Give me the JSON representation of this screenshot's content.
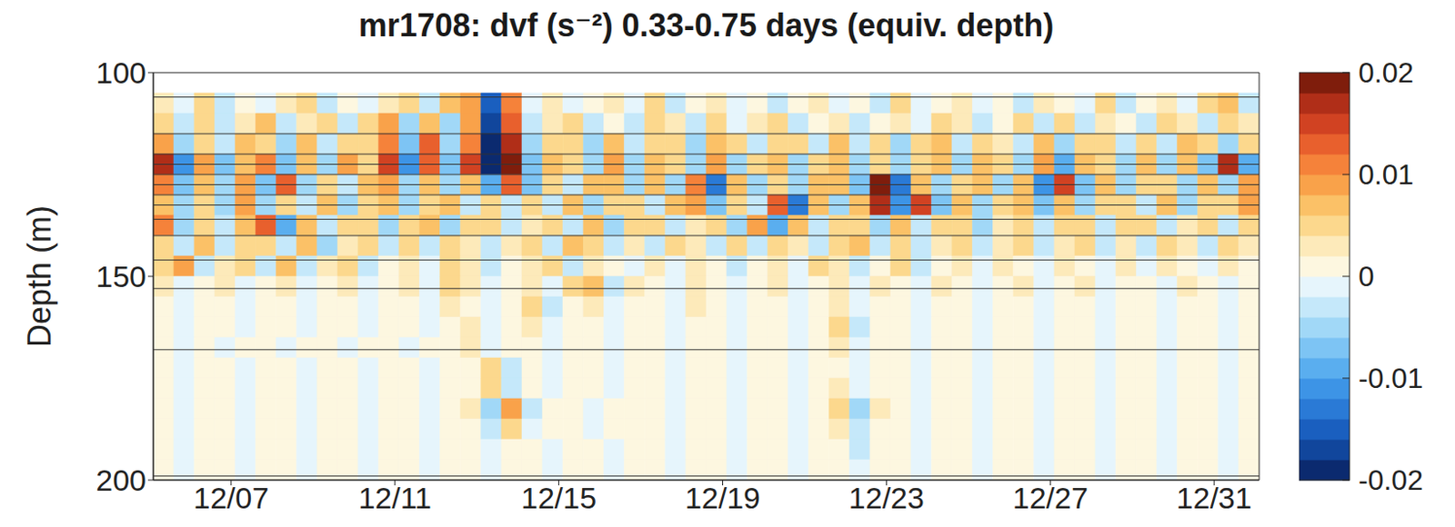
{
  "chart_data": {
    "type": "heatmap",
    "title": "mr1708: dvf (s⁻²) 0.33-0.75 days (equiv. depth)",
    "ylabel": "Depth (m)",
    "x": [
      5.35,
      5.85,
      6.35,
      6.85,
      7.35,
      7.85,
      8.35,
      8.85,
      9.35,
      9.85,
      10.35,
      10.85,
      11.35,
      11.85,
      12.35,
      12.85,
      13.35,
      13.85,
      14.35,
      14.85,
      15.35,
      15.85,
      16.35,
      16.85,
      17.35,
      17.85,
      18.35,
      18.85,
      19.35,
      19.85,
      20.35,
      20.85,
      21.35,
      21.85,
      22.35,
      22.85,
      23.35,
      23.85,
      24.35,
      24.85,
      25.35,
      25.85,
      26.35,
      26.85,
      27.35,
      27.85,
      28.35,
      28.85,
      29.35,
      29.85,
      30.35,
      30.85,
      31.35,
      31.85
    ],
    "y": [
      107.5,
      112.5,
      117.5,
      122.5,
      127.5,
      132.5,
      137.5,
      142.5,
      147.5,
      152.5,
      157.5,
      162.5,
      167.5,
      172.5,
      177.5,
      182.5,
      187.5,
      192.5,
      197.5
    ],
    "z": [
      [
        0.003,
        -0.002,
        0.004,
        -0.003,
        0.002,
        -0.002,
        0.003,
        0.004,
        -0.003,
        0.002,
        -0.002,
        0.003,
        0.005,
        -0.004,
        0.006,
        0.008,
        -0.016,
        0.01,
        -0.002,
        0.003,
        -0.002,
        0.002,
        0.003,
        -0.002,
        0.004,
        -0.003,
        0.002,
        0.003,
        -0.002,
        0.002,
        -0.003,
        0.002,
        0.003,
        -0.002,
        0.002,
        -0.003,
        0.004,
        -0.002,
        0.002,
        0.003,
        -0.002,
        0.002,
        -0.003,
        0.003,
        0.002,
        -0.002,
        0.004,
        -0.003,
        0.002,
        0.003,
        -0.002,
        0.004,
        0.006,
        -0.003
      ],
      [
        0.004,
        -0.003,
        0.005,
        -0.004,
        0.003,
        0.006,
        -0.004,
        0.003,
        0.005,
        -0.003,
        0.004,
        0.008,
        -0.006,
        0.007,
        -0.005,
        0.009,
        -0.018,
        0.012,
        -0.004,
        0.003,
        0.005,
        -0.003,
        0.002,
        -0.004,
        0.004,
        0.003,
        -0.003,
        0.005,
        -0.002,
        0.003,
        0.004,
        -0.003,
        0.002,
        0.003,
        -0.004,
        0.002,
        0.003,
        -0.002,
        0.004,
        0.003,
        -0.003,
        0.002,
        0.004,
        -0.003,
        0.005,
        -0.004,
        0.003,
        0.002,
        -0.003,
        0.004,
        0.003,
        -0.004,
        0.005,
        0.003
      ],
      [
        0.008,
        -0.006,
        0.005,
        -0.004,
        0.006,
        0.004,
        -0.005,
        0.006,
        -0.003,
        0.005,
        0.004,
        0.011,
        -0.008,
        0.012,
        -0.006,
        0.01,
        -0.02,
        0.016,
        -0.006,
        0.005,
        0.004,
        -0.005,
        0.006,
        -0.004,
        0.005,
        0.004,
        -0.005,
        0.006,
        0.004,
        -0.003,
        0.005,
        0.004,
        -0.004,
        0.006,
        -0.003,
        0.004,
        -0.005,
        0.004,
        0.006,
        -0.004,
        0.005,
        0.003,
        -0.004,
        0.006,
        -0.005,
        0.004,
        0.005,
        -0.004,
        0.005,
        -0.004,
        0.006,
        0.004,
        -0.005,
        0.004
      ],
      [
        0.016,
        -0.012,
        0.009,
        -0.007,
        0.006,
        0.01,
        -0.008,
        0.007,
        -0.006,
        0.008,
        0.005,
        0.014,
        -0.012,
        0.013,
        -0.008,
        0.015,
        -0.02,
        0.018,
        -0.008,
        0.006,
        0.005,
        -0.006,
        0.008,
        -0.005,
        0.006,
        0.005,
        -0.006,
        0.008,
        -0.005,
        0.004,
        0.006,
        -0.005,
        0.005,
        0.007,
        -0.006,
        0.005,
        -0.006,
        0.005,
        0.007,
        -0.005,
        0.006,
        0.004,
        -0.005,
        0.009,
        -0.01,
        0.006,
        0.005,
        -0.005,
        0.006,
        -0.005,
        0.007,
        -0.008,
        0.016,
        -0.01
      ],
      [
        0.01,
        -0.008,
        0.006,
        -0.005,
        0.009,
        -0.007,
        0.012,
        -0.006,
        0.005,
        -0.004,
        0.006,
        0.008,
        -0.006,
        0.007,
        -0.005,
        0.006,
        -0.01,
        0.012,
        -0.007,
        0.005,
        -0.004,
        0.006,
        0.007,
        -0.005,
        0.006,
        -0.005,
        0.011,
        -0.013,
        0.006,
        -0.005,
        0.005,
        -0.006,
        0.007,
        0.006,
        -0.008,
        0.018,
        -0.014,
        0.007,
        -0.006,
        0.005,
        0.006,
        -0.005,
        0.006,
        -0.012,
        0.014,
        -0.008,
        0.006,
        -0.005,
        0.004,
        0.005,
        -0.006,
        0.007,
        -0.005,
        0.009
      ],
      [
        0.006,
        -0.005,
        0.004,
        -0.006,
        0.008,
        -0.005,
        0.005,
        -0.004,
        0.006,
        -0.005,
        0.004,
        0.006,
        -0.005,
        0.004,
        0.006,
        -0.004,
        0.005,
        -0.004,
        0.005,
        -0.004,
        0.006,
        -0.005,
        0.004,
        0.005,
        -0.004,
        0.006,
        0.008,
        -0.007,
        0.005,
        -0.004,
        0.012,
        -0.014,
        0.006,
        -0.005,
        0.007,
        0.016,
        -0.012,
        0.014,
        -0.008,
        0.006,
        -0.005,
        0.005,
        0.006,
        -0.008,
        0.007,
        -0.005,
        0.004,
        0.005,
        -0.004,
        0.006,
        -0.005,
        0.004,
        0.005,
        0.008
      ],
      [
        0.01,
        -0.006,
        0.005,
        -0.004,
        0.006,
        0.012,
        -0.01,
        0.006,
        -0.004,
        0.005,
        0.004,
        -0.005,
        0.004,
        0.006,
        -0.005,
        0.004,
        0.005,
        -0.004,
        0.003,
        0.005,
        -0.004,
        0.006,
        -0.005,
        0.004,
        0.005,
        -0.004,
        0.003,
        0.005,
        -0.006,
        0.008,
        -0.01,
        0.006,
        -0.004,
        0.005,
        0.004,
        -0.005,
        0.006,
        -0.004,
        0.005,
        0.004,
        -0.005,
        0.003,
        0.004,
        -0.003,
        0.005,
        0.004,
        -0.003,
        0.004,
        0.005,
        -0.004,
        0.003,
        0.004,
        -0.003,
        0.005
      ],
      [
        0.005,
        -0.004,
        0.006,
        -0.003,
        0.004,
        0.005,
        -0.004,
        0.007,
        -0.005,
        0.003,
        0.004,
        -0.003,
        0.004,
        -0.003,
        0.005,
        0.003,
        -0.004,
        0.003,
        0.004,
        -0.003,
        0.006,
        0.005,
        -0.004,
        0.003,
        -0.003,
        0.004,
        0.003,
        -0.004,
        0.005,
        -0.003,
        0.004,
        0.003,
        -0.003,
        0.004,
        0.006,
        -0.004,
        0.005,
        -0.004,
        0.003,
        0.004,
        -0.003,
        0.003,
        0.004,
        -0.003,
        0.003,
        0.004,
        -0.003,
        0.003,
        -0.003,
        0.004,
        0.003,
        -0.003,
        0.004,
        0.003
      ],
      [
        0.004,
        0.008,
        -0.003,
        0.003,
        0.005,
        -0.004,
        0.006,
        -0.003,
        0.003,
        0.004,
        -0.003,
        0.002,
        0.003,
        -0.002,
        0.004,
        0.003,
        -0.003,
        0.002,
        0.003,
        0.005,
        -0.004,
        0.003,
        0.002,
        -0.002,
        0.003,
        -0.002,
        0.003,
        0.002,
        -0.003,
        0.002,
        0.003,
        -0.002,
        0.004,
        0.003,
        -0.003,
        0.002,
        0.004,
        -0.003,
        0.002,
        0.003,
        -0.002,
        0.003,
        0.002,
        -0.002,
        0.003,
        0.002,
        -0.002,
        0.003,
        -0.002,
        0.003,
        0.002,
        -0.002,
        0.003,
        0.002
      ],
      [
        0.003,
        -0.002,
        0.002,
        0.003,
        -0.002,
        0.002,
        0.003,
        -0.002,
        0.002,
        0.003,
        -0.002,
        0.002,
        0.003,
        -0.002,
        0.004,
        0.003,
        -0.002,
        0.002,
        0.003,
        -0.002,
        0.005,
        0.006,
        -0.004,
        0.003,
        0.002,
        -0.002,
        0.003,
        0.002,
        -0.002,
        0.002,
        0.003,
        -0.002,
        0.002,
        0.003,
        -0.002,
        0.003,
        0.002,
        -0.002,
        0.003,
        0.002,
        -0.002,
        0.002,
        0.003,
        -0.002,
        0.002,
        0.003,
        -0.002,
        0.002,
        0.002,
        -0.002,
        0.003,
        0.002,
        -0.002,
        0.002
      ],
      [
        0.002,
        -0.001,
        0.002,
        0.001,
        -0.002,
        0.002,
        0.001,
        -0.002,
        0.002,
        0.001,
        -0.001,
        0.002,
        0.002,
        -0.002,
        0.003,
        0.002,
        -0.002,
        0.002,
        0.004,
        -0.003,
        0.002,
        0.003,
        -0.002,
        0.002,
        0.002,
        -0.002,
        0.003,
        0.002,
        -0.001,
        0.002,
        0.002,
        -0.002,
        0.001,
        0.003,
        -0.002,
        0.002,
        0.002,
        -0.001,
        0.002,
        0.002,
        -0.002,
        0.001,
        0.002,
        -0.002,
        0.001,
        0.002,
        -0.001,
        0.002,
        0.001,
        -0.002,
        0.002,
        0.001,
        -0.001,
        0.002
      ],
      [
        0.001,
        -0.002,
        0.001,
        0.002,
        -0.001,
        0.001,
        0.002,
        -0.001,
        0.001,
        0.002,
        -0.002,
        0.001,
        0.002,
        -0.001,
        0.002,
        0.003,
        -0.002,
        0.001,
        0.003,
        -0.002,
        0.002,
        0.001,
        -0.002,
        0.002,
        0.001,
        -0.001,
        0.002,
        0.001,
        -0.002,
        0.001,
        0.002,
        -0.001,
        0.002,
        0.004,
        -0.003,
        0.002,
        0.001,
        -0.002,
        0.001,
        0.002,
        -0.001,
        0.002,
        0.001,
        -0.001,
        0.002,
        0.001,
        -0.002,
        0.001,
        0.002,
        -0.001,
        0.001,
        0.002,
        -0.001,
        0.001
      ],
      [
        0.002,
        -0.001,
        0.001,
        -0.002,
        0.002,
        0.001,
        -0.001,
        0.002,
        0.001,
        -0.002,
        0.001,
        0.002,
        -0.001,
        0.002,
        0.001,
        0.003,
        -0.002,
        0.002,
        0.002,
        -0.001,
        0.001,
        0.002,
        -0.001,
        0.002,
        0.002,
        -0.002,
        0.001,
        0.002,
        -0.001,
        0.001,
        0.002,
        -0.001,
        0.002,
        0.003,
        -0.002,
        0.001,
        0.002,
        -0.001,
        0.001,
        0.002,
        -0.002,
        0.001,
        0.002,
        -0.001,
        0.002,
        0.001,
        -0.001,
        0.002,
        0.001,
        -0.002,
        0.001,
        0.002,
        -0.001,
        0.001
      ],
      [
        0.001,
        -0.002,
        0.002,
        0.001,
        -0.001,
        0.002,
        0.001,
        -0.001,
        0.002,
        0.001,
        -0.002,
        0.001,
        0.002,
        -0.001,
        0.001,
        0.002,
        0.004,
        -0.003,
        0.002,
        -0.001,
        0.002,
        0.001,
        -0.002,
        0.002,
        0.001,
        -0.001,
        0.002,
        0.001,
        -0.001,
        0.002,
        0.001,
        -0.002,
        0.002,
        0.001,
        -0.001,
        0.002,
        0.001,
        -0.001,
        0.002,
        0.002,
        -0.001,
        0.001,
        0.002,
        -0.001,
        0.001,
        0.002,
        -0.001,
        0.001,
        0.001,
        -0.001,
        0.002,
        0.001,
        -0.001,
        0.002
      ],
      [
        0.002,
        -0.001,
        0.001,
        0.002,
        -0.001,
        0.001,
        0.001,
        -0.002,
        0.001,
        0.002,
        -0.001,
        0.002,
        0.001,
        -0.001,
        0.002,
        0.001,
        0.005,
        -0.004,
        0.002,
        -0.001,
        0.001,
        0.002,
        -0.001,
        0.002,
        0.001,
        -0.002,
        0.001,
        0.002,
        -0.001,
        0.001,
        0.002,
        -0.001,
        0.001,
        0.003,
        -0.002,
        0.002,
        0.001,
        -0.001,
        0.002,
        0.001,
        -0.002,
        0.001,
        0.002,
        -0.001,
        0.002,
        0.001,
        -0.001,
        0.002,
        0.001,
        -0.001,
        0.001,
        0.002,
        -0.001,
        0.001
      ],
      [
        0.001,
        -0.001,
        0.002,
        0.001,
        -0.002,
        0.001,
        0.002,
        -0.001,
        0.001,
        0.002,
        -0.001,
        0.001,
        0.002,
        -0.002,
        0.001,
        0.003,
        -0.006,
        0.008,
        -0.003,
        0.002,
        0.001,
        -0.001,
        0.002,
        0.001,
        0.002,
        -0.001,
        0.001,
        0.002,
        -0.001,
        0.002,
        0.001,
        -0.002,
        0.002,
        0.004,
        -0.005,
        0.003,
        0.002,
        -0.001,
        0.001,
        0.002,
        -0.001,
        0.002,
        0.001,
        -0.002,
        0.002,
        0.001,
        -0.001,
        0.001,
        0.002,
        -0.001,
        0.001,
        0.002,
        -0.001,
        0.001
      ],
      [
        0.001,
        -0.001,
        0.001,
        0.002,
        -0.001,
        0.001,
        0.001,
        -0.001,
        0.002,
        0.001,
        -0.001,
        0.002,
        0.001,
        -0.001,
        0.002,
        0.001,
        -0.004,
        0.005,
        -0.002,
        0.001,
        0.002,
        -0.001,
        0.001,
        0.002,
        0.001,
        -0.001,
        0.001,
        0.002,
        -0.001,
        0.001,
        0.002,
        -0.001,
        0.002,
        0.003,
        -0.004,
        0.002,
        0.001,
        -0.001,
        0.002,
        0.001,
        -0.001,
        0.001,
        0.002,
        -0.001,
        0.001,
        0.002,
        -0.001,
        0.001,
        0.001,
        -0.001,
        0.002,
        0.001,
        -0.001,
        0.002
      ],
      [
        0.001,
        -0.001,
        0.001,
        0.001,
        -0.001,
        0.001,
        0.002,
        -0.001,
        0.001,
        0.001,
        -0.001,
        0.001,
        0.001,
        -0.001,
        0.001,
        0.002,
        -0.001,
        0.001,
        0.001,
        -0.001,
        0.002,
        0.001,
        -0.001,
        0.001,
        0.001,
        -0.001,
        0.001,
        0.002,
        -0.001,
        0.001,
        0.001,
        -0.002,
        0.001,
        0.002,
        -0.003,
        0.002,
        0.001,
        -0.001,
        0.001,
        0.001,
        -0.001,
        0.002,
        0.001,
        -0.001,
        0.001,
        0.002,
        -0.001,
        0.001,
        0.001,
        -0.001,
        0.001,
        0.001,
        -0.001,
        0.001
      ],
      [
        0.001,
        -0.001,
        0.001,
        0.001,
        -0.001,
        0.001,
        0.001,
        -0.001,
        0.001,
        0.001,
        -0.001,
        0.001,
        0.001,
        -0.001,
        0.001,
        0.001,
        -0.001,
        0.001,
        0.001,
        -0.001,
        0.001,
        0.002,
        -0.001,
        0.001,
        0.001,
        -0.001,
        0.001,
        0.001,
        -0.001,
        0.001,
        0.001,
        -0.001,
        0.002,
        0.001,
        -0.002,
        0.001,
        0.001,
        -0.001,
        0.001,
        0.001,
        -0.001,
        0.001,
        0.001,
        -0.001,
        0.001,
        0.001,
        -0.001,
        0.001,
        0.001,
        -0.001,
        0.001,
        0.001,
        -0.001,
        0.001
      ]
    ],
    "xlim": [
      5.1,
      32.1
    ],
    "xticks": [
      {
        "value": 7,
        "label": "12/07"
      },
      {
        "value": 11,
        "label": "12/11"
      },
      {
        "value": 15,
        "label": "12/15"
      },
      {
        "value": 19,
        "label": "12/19"
      },
      {
        "value": 23,
        "label": "12/23"
      },
      {
        "value": 27,
        "label": "12/27"
      },
      {
        "value": 31,
        "label": "12/31"
      }
    ],
    "ylim": [
      100,
      200
    ],
    "yticks": [
      100,
      150,
      200
    ],
    "reference_lines": [
      106,
      115,
      120,
      122.5,
      125,
      127.5,
      130,
      132.5,
      136,
      140,
      146,
      153,
      168,
      199
    ],
    "colorbar": {
      "range": [
        -0.02,
        0.02
      ],
      "ticks": [
        -0.02,
        -0.01,
        0,
        0.01,
        0.02
      ],
      "colors": [
        "#0b2a6f",
        "#11469c",
        "#1a5fbf",
        "#2a7ad6",
        "#3d94e6",
        "#5aaeef",
        "#7dc4f4",
        "#a1d8f7",
        "#c5e8fa",
        "#e6f5fc",
        "#fdf7e0",
        "#fdeaba",
        "#fcd88d",
        "#fbc167",
        "#f9a24a",
        "#f5823a",
        "#e8602d",
        "#d14222",
        "#b02e18",
        "#7f1d0c"
      ]
    }
  }
}
